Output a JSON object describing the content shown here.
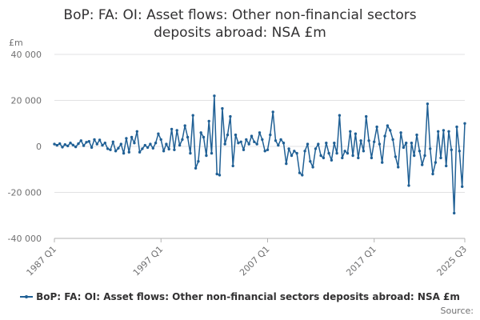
{
  "chart_data": {
    "type": "line",
    "title": "BoP: FA: OI: Asset flows: Other non-financial sectors deposits abroad: NSA £m",
    "unit": "£m",
    "xlabel": "",
    "ylabel": "",
    "ylim": [
      -40000,
      40000
    ],
    "y_ticks": [
      -40000,
      -20000,
      0,
      20000,
      40000
    ],
    "y_tick_labels": [
      "-40 000",
      "-20 000",
      "0",
      "20 000",
      "40 000"
    ],
    "x_tick_labels": [
      "1987 Q1",
      "1997 Q1",
      "2007 Q1",
      "2017 Q1",
      "2025 Q3"
    ],
    "x_tick_index": [
      0,
      40,
      80,
      120,
      154
    ],
    "grid": true,
    "legend_position": "bottom",
    "source_label": "Source:",
    "categories_range": [
      "1987 Q1",
      "2025 Q3"
    ],
    "series": [
      {
        "name": "BoP: FA: OI: Asset flows: Other non-financial sectors deposits abroad: NSA £m",
        "color": "#206095",
        "values": [
          1000,
          500,
          1200,
          -300,
          800,
          200,
          1500,
          600,
          -200,
          1200,
          2500,
          300,
          1800,
          2200,
          -500,
          3000,
          1000,
          2800,
          500,
          1500,
          -1000,
          -1500,
          2000,
          -2000,
          -800,
          1000,
          -3000,
          3500,
          -2500,
          4000,
          1500,
          6500,
          -2500,
          -1000,
          500,
          -500,
          1000,
          -800,
          1500,
          5500,
          3000,
          -2000,
          1000,
          -1200,
          7500,
          -1500,
          7000,
          500,
          3000,
          9000,
          4000,
          -3000,
          13500,
          -9500,
          -6500,
          6000,
          4000,
          -4000,
          11000,
          -3000,
          22000,
          -12000,
          -12500,
          16500,
          1000,
          5000,
          13000,
          -8500,
          5000,
          1500,
          2000,
          -1500,
          3000,
          1000,
          4500,
          2000,
          1000,
          6000,
          3000,
          -2000,
          -1500,
          5000,
          15000,
          2500,
          500,
          3000,
          1500,
          -7500,
          -1000,
          -4000,
          -2000,
          -3000,
          -11500,
          -12500,
          -2000,
          1000,
          -6500,
          -9000,
          -1000,
          1000,
          -4000,
          -5000,
          1500,
          -3000,
          -6000,
          1500,
          -3000,
          13500,
          -5000,
          -2000,
          -3000,
          6500,
          -4000,
          5500,
          -5000,
          2500,
          -2000,
          13000,
          2500,
          -5000,
          2000,
          8500,
          1000,
          -7000,
          4500,
          9000,
          7000,
          3000,
          -4500,
          -9000,
          6000,
          -500,
          1500,
          -17000,
          1500,
          -4000,
          5000,
          -2000,
          -8000,
          -4000,
          18500,
          -1000,
          -12000,
          -7000,
          6500,
          -5000,
          7000,
          -8500,
          6500,
          -1500,
          -29000,
          8500,
          -2000,
          -17500,
          10000
        ]
      }
    ]
  }
}
